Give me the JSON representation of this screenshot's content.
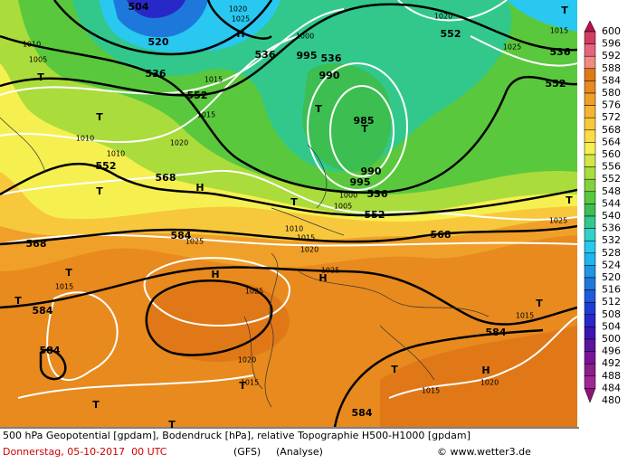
{
  "colorbar": {
    "levels": [
      {
        "label": 600,
        "color": "#b4124a"
      },
      {
        "label": 596,
        "color": "#d23c64"
      },
      {
        "label": 592,
        "color": "#e6647d"
      },
      {
        "label": 588,
        "color": "#f08a82"
      },
      {
        "label": 584,
        "color": "#e07818"
      },
      {
        "label": 580,
        "color": "#e88a1e"
      },
      {
        "label": 576,
        "color": "#f0a028"
      },
      {
        "label": 572,
        "color": "#f5b432"
      },
      {
        "label": 568,
        "color": "#f8c83c"
      },
      {
        "label": 564,
        "color": "#fadc46"
      },
      {
        "label": 560,
        "color": "#f5f050"
      },
      {
        "label": 556,
        "color": "#d2e646"
      },
      {
        "label": 552,
        "color": "#aadc3c"
      },
      {
        "label": 548,
        "color": "#82d23c"
      },
      {
        "label": 544,
        "color": "#5ac83c"
      },
      {
        "label": 540,
        "color": "#3cbe50"
      },
      {
        "label": 536,
        "color": "#32c88c"
      },
      {
        "label": 532,
        "color": "#32d2c8"
      },
      {
        "label": 528,
        "color": "#28c8f0"
      },
      {
        "label": 524,
        "color": "#1eb4f0"
      },
      {
        "label": 520,
        "color": "#1e96e6"
      },
      {
        "label": 516,
        "color": "#1e78dc"
      },
      {
        "label": 512,
        "color": "#1e5adc"
      },
      {
        "label": 508,
        "color": "#1e3cd2"
      },
      {
        "label": 504,
        "color": "#2828c8"
      },
      {
        "label": 500,
        "color": "#3c14b4"
      },
      {
        "label": 496,
        "color": "#5a14a0"
      },
      {
        "label": 492,
        "color": "#781496"
      },
      {
        "label": 488,
        "color": "#8c1e8c"
      },
      {
        "label": 484,
        "color": "#a02896"
      },
      {
        "label": 480,
        "color": "#8c1478"
      }
    ]
  },
  "map_labels": [
    "504",
    "520",
    "536",
    "552",
    "T",
    "552",
    "T",
    "568",
    "H",
    "568",
    "584",
    "T",
    "T",
    "584",
    "H",
    "584",
    "T",
    "T",
    "T",
    "H",
    "T",
    "H",
    "T",
    "584",
    "584",
    "568",
    "552",
    "536",
    "T",
    "T",
    "T",
    "552",
    "536",
    "552",
    "T",
    "536",
    "536",
    "H",
    "T",
    "T",
    "1010",
    "1005",
    "1015",
    "1015",
    "1010",
    "1010",
    "1020",
    "1025",
    "1015",
    "1025",
    "1020",
    "1015",
    "1015",
    "1020",
    "1015",
    "1025",
    "1020",
    "1015",
    "1010",
    "1005",
    "1000",
    "995",
    "990",
    "985",
    "990",
    "995",
    "1000",
    "1020",
    "1025",
    "1020",
    "1025",
    "1015",
    "1025"
  ],
  "footer": {
    "description": "500 hPa Geopotential [gpdam], Bodendruck [hPa], relative Topographie H500-H1000 [gpdam]",
    "date": "Donnerstag, 05-10-2017  00 UTC",
    "model": "(GFS)",
    "run": "(Analyse)",
    "source": "© www.wetter3.de"
  }
}
